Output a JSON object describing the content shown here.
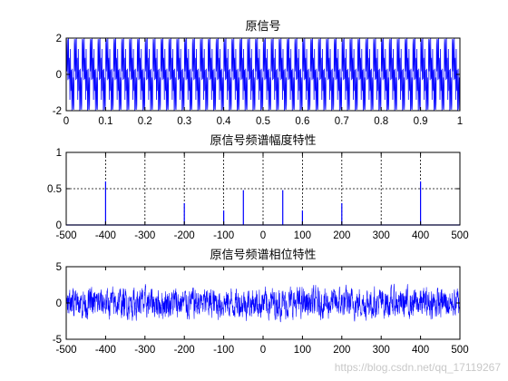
{
  "watermark": "https://blog.csdn.net/qq_17119267",
  "colors": {
    "signal": "#0000ff",
    "axes": "#000000",
    "grid": "#000000",
    "background": "#ffffff"
  },
  "chart_data": [
    {
      "type": "line",
      "title": "原信号",
      "xlim": [
        0,
        1
      ],
      "ylim": [
        -2,
        2
      ],
      "xticks": [
        0,
        0.1,
        0.2,
        0.3,
        0.4,
        0.5,
        0.6,
        0.7,
        0.8,
        0.9,
        1
      ],
      "xtick_labels": [
        "0",
        "0.1",
        "0.2",
        "0.3",
        "0.4",
        "0.5",
        "0.6",
        "0.7",
        "0.8",
        "0.9",
        "1"
      ],
      "yticks": [
        -2,
        0,
        2
      ],
      "ytick_labels": [
        "-2",
        "0",
        "2"
      ],
      "grid": false,
      "signal": {
        "components": [
          {
            "frequency": 50,
            "amplitude": 1.0
          },
          {
            "frequency": 100,
            "amplitude": 0.4
          },
          {
            "frequency": 200,
            "amplitude": 0.6
          },
          {
            "frequency": 400,
            "amplitude": 1.2
          }
        ]
      }
    },
    {
      "type": "line",
      "title": "原信号频谱幅度特性",
      "xlim": [
        -500,
        500
      ],
      "ylim": [
        0,
        1
      ],
      "xticks": [
        -500,
        -400,
        -300,
        -200,
        -100,
        0,
        100,
        200,
        300,
        400,
        500
      ],
      "xtick_labels": [
        "-500",
        "-400",
        "-300",
        "-200",
        "-100",
        "0",
        "100",
        "200",
        "300",
        "400",
        "500"
      ],
      "yticks": [
        0,
        0.5,
        1
      ],
      "ytick_labels": [
        "0",
        "0.5",
        "1"
      ],
      "grid": true,
      "peaks": [
        {
          "x": -400,
          "y": 0.6
        },
        {
          "x": -200,
          "y": 0.3
        },
        {
          "x": -100,
          "y": 0.2
        },
        {
          "x": -50,
          "y": 0.48
        },
        {
          "x": 50,
          "y": 0.48
        },
        {
          "x": 100,
          "y": 0.2
        },
        {
          "x": 200,
          "y": 0.3
        },
        {
          "x": 400,
          "y": 0.6
        }
      ]
    },
    {
      "type": "line",
      "title": "原信号频谱相位特性",
      "xlim": [
        -500,
        500
      ],
      "ylim": [
        -5,
        5
      ],
      "xticks": [
        -500,
        -400,
        -300,
        -200,
        -100,
        0,
        100,
        200,
        300,
        400,
        500
      ],
      "xtick_labels": [
        "-500",
        "-400",
        "-300",
        "-200",
        "-100",
        "0",
        "100",
        "200",
        "300",
        "400",
        "500"
      ],
      "yticks": [
        -5,
        0,
        5
      ],
      "ytick_labels": [
        "-5",
        "0",
        "5"
      ],
      "grid": false,
      "phase_range": [
        -3.14,
        3.14
      ]
    }
  ]
}
